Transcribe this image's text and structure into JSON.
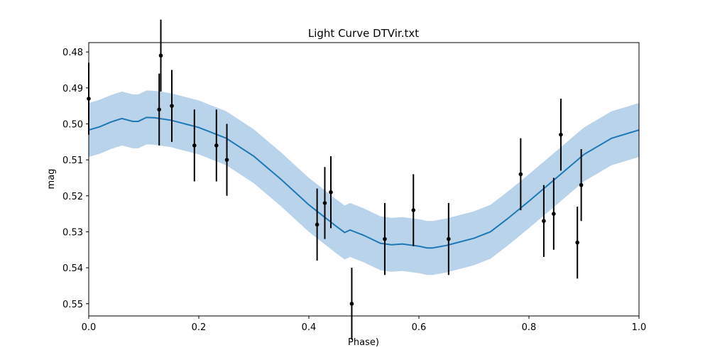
{
  "chart_data": {
    "type": "scatter",
    "title": "Light Curve DTVir.txt",
    "x_label": "Phase)",
    "y_label": "mag",
    "xlim": [
      0,
      1
    ],
    "ylim": [
      0.5534,
      0.4774
    ],
    "xticks": [
      {
        "value": 0,
        "label": "0.0"
      },
      {
        "value": 0.2,
        "label": "0.2"
      },
      {
        "value": 0.4,
        "label": "0.4"
      },
      {
        "value": 0.6,
        "label": "0.6"
      },
      {
        "value": 0.8,
        "label": "0.8"
      },
      {
        "value": 1,
        "label": "1.0"
      }
    ],
    "yticks": [
      0.48,
      0.49,
      {
        "value": 0.5,
        "label": "0.50"
      },
      0.51,
      0.52,
      0.53,
      0.54,
      0.55
    ],
    "points": {
      "color": "#000000",
      "x": [
        0.0,
        0.128,
        0.131,
        0.151,
        0.192,
        0.232,
        0.251,
        0.415,
        0.429,
        0.44,
        0.478,
        0.538,
        0.59,
        0.654,
        0.785,
        0.827,
        0.845,
        0.858,
        0.888,
        0.895
      ],
      "values": [
        0.493,
        0.496,
        0.481,
        0.495,
        0.506,
        0.506,
        0.51,
        0.528,
        0.522,
        0.519,
        0.55,
        0.532,
        0.524,
        0.532,
        0.514,
        0.527,
        0.525,
        0.503,
        0.533,
        0.517
      ],
      "errors": [
        0.01,
        0.01,
        0.01,
        0.01,
        0.01,
        0.01,
        0.01,
        0.01,
        0.01,
        0.01,
        0.01,
        0.01,
        0.01,
        0.01,
        0.01,
        0.01,
        0.01,
        0.01,
        0.01,
        0.01
      ]
    },
    "model": {
      "color": "#1f77b4",
      "band_color": "#b9d4ea",
      "band_error": 0.0075,
      "x": [
        0,
        0.02,
        0.04,
        0.06,
        0.08,
        0.09,
        0.105,
        0.12,
        0.15,
        0.18,
        0.2,
        0.25,
        0.3,
        0.35,
        0.4,
        0.45,
        0.465,
        0.475,
        0.5,
        0.53,
        0.55,
        0.57,
        0.6,
        0.615,
        0.625,
        0.65,
        0.7,
        0.73,
        0.76,
        0.8,
        0.85,
        0.9,
        0.95,
        1.0
      ],
      "values": [
        0.5017,
        0.5008,
        0.4995,
        0.4985,
        0.4993,
        0.4993,
        0.4982,
        0.4983,
        0.499,
        0.5002,
        0.501,
        0.504,
        0.509,
        0.5155,
        0.5225,
        0.5285,
        0.5302,
        0.5295,
        0.531,
        0.5332,
        0.5336,
        0.5334,
        0.534,
        0.5345,
        0.5345,
        0.5338,
        0.5318,
        0.53,
        0.5265,
        0.5215,
        0.515,
        0.5085,
        0.504,
        0.5017
      ]
    }
  }
}
